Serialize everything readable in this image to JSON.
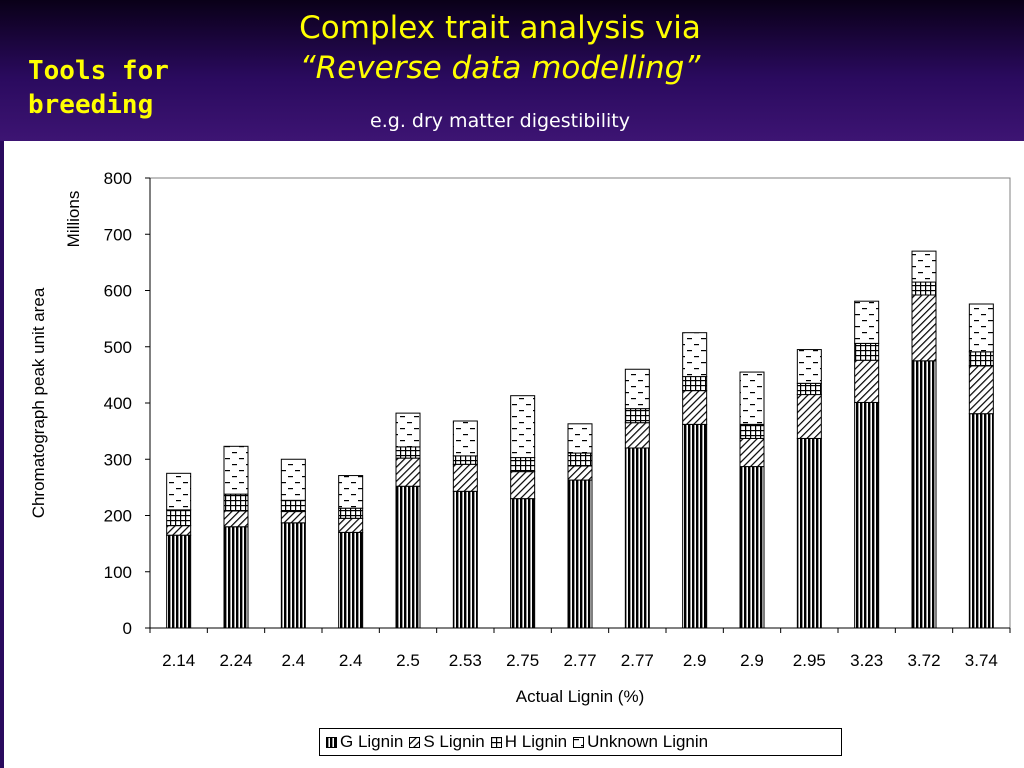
{
  "slide": {
    "side_title_line1": "Tools for",
    "side_title_line2": "breeding",
    "title_line1": "Complex trait analysis via",
    "title_line2": "“Reverse data modelling”",
    "subtitle": "e.g. dry matter digestibility"
  },
  "chart_data": {
    "type": "bar",
    "stacked": true,
    "categories": [
      "2.14",
      "2.24",
      "2.4",
      "2.4",
      "2.5",
      "2.53",
      "2.75",
      "2.77",
      "2.77",
      "2.9",
      "2.9",
      "2.95",
      "3.23",
      "3.72",
      "3.74"
    ],
    "series": [
      {
        "name": "G Lignin",
        "pattern": "vertical",
        "values": [
          165,
          180,
          187,
          170,
          252,
          243,
          230,
          263,
          320,
          362,
          287,
          337,
          401,
          475,
          381
        ]
      },
      {
        "name": "S Lignin",
        "pattern": "diagonal",
        "values": [
          17,
          28,
          20,
          25,
          50,
          48,
          48,
          25,
          45,
          60,
          50,
          78,
          75,
          117,
          85
        ]
      },
      {
        "name": "H Lignin",
        "pattern": "grid",
        "values": [
          28,
          30,
          20,
          18,
          20,
          15,
          25,
          23,
          25,
          25,
          25,
          20,
          30,
          23,
          25
        ]
      },
      {
        "name": "Unknown Lignin",
        "pattern": "dash",
        "values": [
          65,
          85,
          73,
          58,
          60,
          62,
          110,
          52,
          70,
          78,
          93,
          60,
          75,
          55,
          85
        ]
      }
    ],
    "xlabel": "Actual Lignin (%)",
    "ylabel": "Chromatograph peak unit area",
    "y_unit_label": "Millions",
    "ylim": [
      0,
      800
    ],
    "yticks": [
      0,
      100,
      200,
      300,
      400,
      500,
      600,
      700,
      800
    ],
    "legend_position": "bottom",
    "grid": false
  }
}
